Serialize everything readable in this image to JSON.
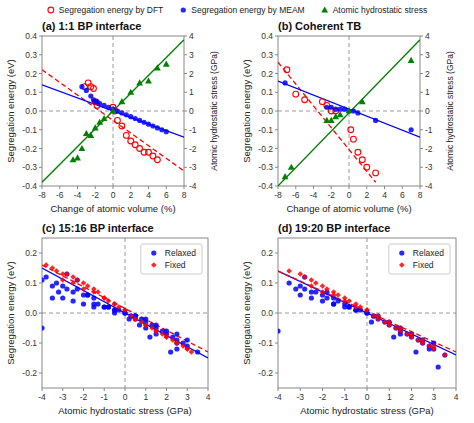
{
  "chart_data": [
    {
      "type": "scatter",
      "title": "(a) 1:1 BP interface",
      "x_label": "Change of atomic volume (%)",
      "y_label": "Segregation energy (eV)",
      "y2_label": "Atomic hydrostatic stress (GPa)",
      "xlim": [
        -8,
        8
      ],
      "ylim": [
        -0.4,
        0.4
      ],
      "y2lim": [
        -4,
        4
      ],
      "xticks": [
        -8,
        -6,
        -4,
        -2,
        0,
        2,
        4,
        6,
        8
      ],
      "yticks": [
        -0.4,
        -0.3,
        -0.2,
        -0.1,
        {
          "value": 0.0,
          "label": "0.0"
        },
        0.1,
        0.2,
        0.3,
        0.4
      ],
      "y2ticks": [
        -4,
        -3,
        -2,
        -1,
        0,
        1,
        2,
        3,
        4
      ],
      "hlines": [
        0
      ],
      "vlines": [
        0
      ],
      "legend": "top",
      "series": [
        {
          "name": "Segregation energy by DFT",
          "type": "scatter",
          "color": "#FF0000",
          "marker": "circle-open",
          "x": [
            -3.2,
            -2.8,
            -2.5,
            -2.2,
            -2.0,
            -1.8,
            0.0,
            0.2,
            0.5,
            1.0,
            1.5,
            2.0,
            2.5,
            3.0,
            3.5,
            4.0,
            4.5,
            5.0
          ],
          "values": [
            0.13,
            0.15,
            0.13,
            0.12,
            0.05,
            0.03,
            0.02,
            0.0,
            -0.05,
            -0.08,
            -0.13,
            -0.16,
            -0.18,
            -0.2,
            -0.22,
            -0.22,
            -0.24,
            -0.26
          ]
        },
        {
          "name": "Segregation energy by MEAM",
          "type": "scatter",
          "color": "#0000FF",
          "marker": "circle",
          "x": [
            -3.5,
            -3.0,
            -2.5,
            -2.2,
            -2.0,
            -1.8,
            -1.5,
            -1.0,
            -0.5,
            0.0,
            0.5,
            1.0,
            1.5,
            2.0,
            2.5,
            3.0,
            3.5,
            4.0,
            4.5,
            5.0,
            5.5,
            6.0
          ],
          "values": [
            0.13,
            0.11,
            0.08,
            0.06,
            0.05,
            0.05,
            0.04,
            0.03,
            0.02,
            0.01,
            0.0,
            -0.01,
            -0.02,
            -0.03,
            -0.04,
            -0.05,
            -0.06,
            -0.07,
            -0.08,
            -0.09,
            -0.1,
            -0.11
          ]
        },
        {
          "name": "Atomic hydrostatic stress",
          "type": "scatter",
          "color": "#008000",
          "marker": "triangle",
          "axis": "y2",
          "x": [
            -4.5,
            -4.0,
            -3.5,
            -3.0,
            -2.5,
            -2.0,
            -1.5,
            -1.0,
            0.0,
            1.0,
            2.0,
            3.0,
            4.0,
            5.0,
            6.0
          ],
          "values": [
            -2.6,
            -2.5,
            -2.0,
            -1.2,
            -1.3,
            -0.9,
            -0.6,
            -0.4,
            0.02,
            0.5,
            1.0,
            1.5,
            1.6,
            2.3,
            2.5
          ]
        },
        {
          "type": "line",
          "color": "#FF0000",
          "line_style": "dashed",
          "x": [
            -8,
            8
          ],
          "values": [
            0.22,
            -0.32
          ]
        },
        {
          "type": "line",
          "color": "#0000FF",
          "line_style": "solid",
          "x": [
            -8,
            8
          ],
          "values": [
            0.14,
            -0.14
          ]
        },
        {
          "type": "line",
          "color": "#008000",
          "line_style": "solid",
          "axis": "y2",
          "x": [
            -8,
            8
          ],
          "values": [
            -3.8,
            3.8
          ]
        }
      ]
    },
    {
      "type": "scatter",
      "title": "(b) Coherent TB",
      "x_label": "Change of atomic volume (%)",
      "y_label": "Segregation energy (eV)",
      "y2_label": "Atomic hydrostatic stress (GPa)",
      "xlim": [
        -8,
        8
      ],
      "ylim": [
        -0.4,
        0.4
      ],
      "y2lim": [
        -4,
        4
      ],
      "xticks": [
        -8,
        -6,
        -4,
        -2,
        0,
        2,
        4,
        6,
        8
      ],
      "yticks": [
        -0.4,
        -0.3,
        -0.2,
        -0.1,
        {
          "value": 0.0,
          "label": "0.0"
        },
        0.1,
        0.2,
        0.3,
        0.4
      ],
      "y2ticks": [
        -4,
        -3,
        -2,
        -1,
        0,
        1,
        2,
        3,
        4
      ],
      "hlines": [
        0
      ],
      "vlines": [
        0
      ],
      "series": [
        {
          "type": "scatter",
          "color": "#FF0000",
          "marker": "circle-open",
          "x": [
            -7.0,
            -6.0,
            -5.0,
            -3.0,
            -2.5,
            -2.0,
            -1.5,
            0.2,
            0.5,
            1.0,
            1.5,
            2.0,
            3.0
          ],
          "values": [
            0.22,
            0.09,
            0.06,
            0.05,
            0.03,
            0.0,
            0.0,
            -0.1,
            -0.15,
            -0.22,
            -0.26,
            -0.3,
            -0.33
          ]
        },
        {
          "type": "scatter",
          "color": "#0000FF",
          "marker": "circle",
          "x": [
            -7.2,
            -2.5,
            -2.0,
            -1.5,
            -1.0,
            -0.5,
            0.0,
            0.5,
            1.0,
            3.0,
            7.0
          ],
          "values": [
            0.15,
            0.02,
            0.02,
            0.01,
            0.01,
            0.01,
            0.0,
            0.0,
            -0.01,
            -0.05,
            -0.1
          ]
        },
        {
          "type": "scatter",
          "color": "#008000",
          "marker": "triangle",
          "axis": "y2",
          "x": [
            -7.2,
            -6.5,
            -2.5,
            -2.0,
            -1.5,
            -1.0,
            0.0,
            1.5,
            7.0
          ],
          "values": [
            -3.5,
            -3.0,
            -0.5,
            -0.5,
            -0.3,
            -0.2,
            0.01,
            0.5,
            2.7
          ]
        },
        {
          "type": "line",
          "color": "#FF0000",
          "line_style": "dashed",
          "x": [
            -8,
            3
          ],
          "values": [
            0.26,
            -0.38
          ]
        },
        {
          "type": "line",
          "color": "#0000FF",
          "line_style": "solid",
          "x": [
            -8,
            8
          ],
          "values": [
            0.16,
            -0.14
          ]
        },
        {
          "type": "line",
          "color": "#008000",
          "line_style": "solid",
          "axis": "y2",
          "x": [
            -8,
            8
          ],
          "values": [
            -4.0,
            3.8
          ]
        }
      ]
    },
    {
      "type": "scatter",
      "title": "(c) 15:16 BP interface",
      "x_label": "Atomic hydrostatic stress (GPa)",
      "y_label": "Segregation energy (eV)",
      "xlim": [
        -4,
        4
      ],
      "ylim": [
        -0.25,
        0.25
      ],
      "xticks": [
        -4,
        -3,
        -2,
        -1,
        0,
        1,
        2,
        3,
        4
      ],
      "yticks": [
        -0.2,
        -0.1,
        {
          "value": 0.0,
          "label": "0.0"
        },
        0.1,
        0.2
      ],
      "hlines": [
        0
      ],
      "vlines": [
        0
      ],
      "legend": "upper right",
      "series": [
        {
          "name": "Relaxed",
          "type": "scatter",
          "color": "#0000FF",
          "marker": "circle",
          "x": [
            -4.0,
            -3.8,
            -3.5,
            -3.3,
            -3.0,
            -2.8,
            -2.5,
            -2.3,
            -2.0,
            -1.8,
            -1.5,
            -1.3,
            -1.0,
            -0.8,
            -0.5,
            -0.3,
            0.0,
            0.3,
            0.5,
            0.8,
            1.0,
            1.3,
            1.5,
            1.8,
            2.0,
            2.3,
            2.5,
            2.8,
            3.0,
            3.5,
            -3.5,
            -3.0,
            -2.5,
            -2.0,
            -1.5,
            -1.0,
            -0.5,
            0.0,
            0.5,
            1.0,
            1.5,
            2.0,
            2.5,
            3.0,
            -4.0,
            -2.8,
            -2.3,
            -1.8,
            -0.8,
            0.2,
            0.7,
            1.2,
            2.2,
            -3.2,
            -1.5,
            0.3,
            1.0,
            2.5,
            -0.5,
            0.5,
            1.5,
            2.5
          ],
          "values": [
            0.11,
            0.12,
            0.09,
            0.1,
            0.09,
            0.08,
            0.07,
            0.08,
            0.06,
            0.06,
            0.05,
            0.03,
            0.02,
            0.02,
            0.01,
            0.01,
            0.0,
            -0.01,
            -0.01,
            -0.02,
            -0.03,
            -0.04,
            -0.05,
            -0.06,
            -0.07,
            -0.08,
            -0.09,
            -0.1,
            -0.11,
            -0.13,
            0.05,
            0.05,
            0.04,
            0.03,
            0.02,
            0.02,
            0.01,
            0.0,
            -0.01,
            -0.02,
            -0.04,
            -0.06,
            -0.07,
            -0.09,
            -0.05,
            0.13,
            0.11,
            0.06,
            0.02,
            -0.02,
            -0.04,
            -0.08,
            -0.13,
            0.07,
            0.03,
            -0.01,
            -0.05,
            -0.1,
            0.0,
            -0.02,
            -0.07,
            -0.12
          ]
        },
        {
          "name": "Fixed",
          "type": "scatter",
          "color": "#FF0000",
          "marker": "diamond",
          "x": [
            -3.8,
            -3.5,
            -3.3,
            -3.0,
            -2.8,
            -2.5,
            -2.3,
            -2.0,
            -1.8,
            -1.5,
            -1.3,
            -1.0,
            -0.8,
            -0.5,
            -0.3,
            0.0,
            0.3,
            0.5,
            0.8,
            1.0,
            1.3,
            1.5,
            1.8,
            2.0,
            2.3,
            2.5,
            2.8,
            3.0,
            3.2,
            -3.0,
            -2.5,
            -2.0,
            -1.5,
            -1.0,
            -0.5,
            0.0,
            0.5,
            1.0,
            1.5,
            2.0,
            2.5,
            3.0
          ],
          "values": [
            0.16,
            0.15,
            0.14,
            0.13,
            0.13,
            0.12,
            0.11,
            0.1,
            0.09,
            0.08,
            0.07,
            0.05,
            0.04,
            0.03,
            0.02,
            0.01,
            -0.01,
            -0.02,
            -0.03,
            -0.04,
            -0.05,
            -0.06,
            -0.07,
            -0.08,
            -0.09,
            -0.1,
            -0.11,
            -0.12,
            -0.13,
            0.11,
            0.1,
            0.08,
            0.07,
            0.05,
            0.03,
            0.01,
            -0.02,
            -0.04,
            -0.06,
            -0.08,
            -0.1,
            -0.12
          ]
        },
        {
          "type": "line",
          "color": "#0000FF",
          "line_style": "solid",
          "x": [
            -4,
            4
          ],
          "values": [
            0.15,
            -0.15
          ]
        },
        {
          "type": "line",
          "color": "#FF0000",
          "line_style": "dashed",
          "x": [
            -4,
            4
          ],
          "values": [
            0.16,
            -0.13
          ]
        }
      ]
    },
    {
      "type": "scatter",
      "title": "(d) 19:20 BP interface",
      "x_label": "Atomic hydrostatic stress (GPa)",
      "y_label": "Segregation energy (eV)",
      "xlim": [
        -4,
        4
      ],
      "ylim": [
        -0.25,
        0.25
      ],
      "xticks": [
        -4,
        -3,
        -2,
        -1,
        0,
        1,
        2,
        3,
        4
      ],
      "yticks": [
        -0.2,
        -0.1,
        {
          "value": 0.0,
          "label": "0.0"
        },
        0.1,
        0.2
      ],
      "hlines": [
        0
      ],
      "vlines": [
        0
      ],
      "legend": "upper right",
      "series": [
        {
          "name": "Relaxed",
          "type": "scatter",
          "color": "#0000FF",
          "marker": "circle",
          "x": [
            -3.5,
            -3.0,
            -2.8,
            -2.5,
            -2.3,
            -2.0,
            -1.8,
            -1.5,
            -1.3,
            -1.0,
            -0.8,
            -0.5,
            -0.3,
            0.0,
            0.3,
            0.5,
            0.8,
            1.0,
            1.3,
            1.5,
            1.8,
            2.0,
            2.3,
            2.5,
            2.8,
            3.0,
            3.5,
            -3.0,
            -2.5,
            -2.0,
            -1.5,
            -1.0,
            -0.5,
            0.0,
            0.5,
            1.0,
            1.5,
            2.0,
            2.5,
            3.0,
            -4.0,
            -2.8,
            -1.8,
            -0.8,
            0.2,
            1.2,
            2.2,
            3.2,
            -3.2,
            -1.5,
            0.3,
            1.5,
            2.8
          ],
          "values": [
            0.1,
            0.09,
            0.08,
            0.07,
            0.07,
            0.06,
            0.05,
            0.05,
            0.04,
            0.03,
            0.02,
            0.01,
            0.01,
            0.0,
            -0.01,
            -0.02,
            -0.03,
            -0.04,
            -0.05,
            -0.06,
            -0.07,
            -0.08,
            -0.09,
            -0.1,
            -0.11,
            -0.12,
            -0.14,
            0.06,
            0.05,
            0.04,
            0.03,
            0.02,
            0.01,
            0.0,
            -0.01,
            -0.03,
            -0.05,
            -0.07,
            -0.09,
            -0.1,
            -0.06,
            0.12,
            0.07,
            0.02,
            -0.03,
            -0.08,
            -0.13,
            -0.18,
            0.08,
            0.03,
            -0.01,
            -0.07,
            -0.12
          ]
        },
        {
          "name": "Fixed",
          "type": "scatter",
          "color": "#FF0000",
          "marker": "diamond",
          "x": [
            -3.5,
            -3.0,
            -2.8,
            -2.5,
            -2.3,
            -2.0,
            -1.8,
            -1.5,
            -1.3,
            -1.0,
            -0.8,
            -0.5,
            -0.3,
            0.0,
            0.3,
            0.5,
            0.8,
            1.0,
            1.3,
            1.5,
            1.8,
            2.0,
            2.3,
            2.5,
            2.8,
            3.0,
            3.5,
            -2.5,
            -2.0,
            -1.5,
            -1.0,
            -0.5,
            0.0,
            0.5,
            1.0,
            1.5,
            2.0,
            2.5,
            3.0
          ],
          "values": [
            0.14,
            0.13,
            0.12,
            0.11,
            0.1,
            0.09,
            0.08,
            0.07,
            0.06,
            0.05,
            0.04,
            0.03,
            0.02,
            0.01,
            -0.01,
            -0.02,
            -0.03,
            -0.04,
            -0.05,
            -0.06,
            -0.07,
            -0.08,
            -0.09,
            -0.1,
            -0.11,
            -0.12,
            -0.14,
            0.09,
            0.07,
            0.06,
            0.04,
            0.02,
            0.01,
            -0.01,
            -0.03,
            -0.05,
            -0.07,
            -0.09,
            -0.11
          ]
        },
        {
          "type": "line",
          "color": "#0000FF",
          "line_style": "solid",
          "x": [
            -4,
            4
          ],
          "values": [
            0.14,
            -0.14
          ]
        },
        {
          "type": "line",
          "color": "#FF0000",
          "line_style": "dashed",
          "x": [
            -4,
            4
          ],
          "values": [
            0.14,
            -0.13
          ]
        }
      ]
    }
  ]
}
